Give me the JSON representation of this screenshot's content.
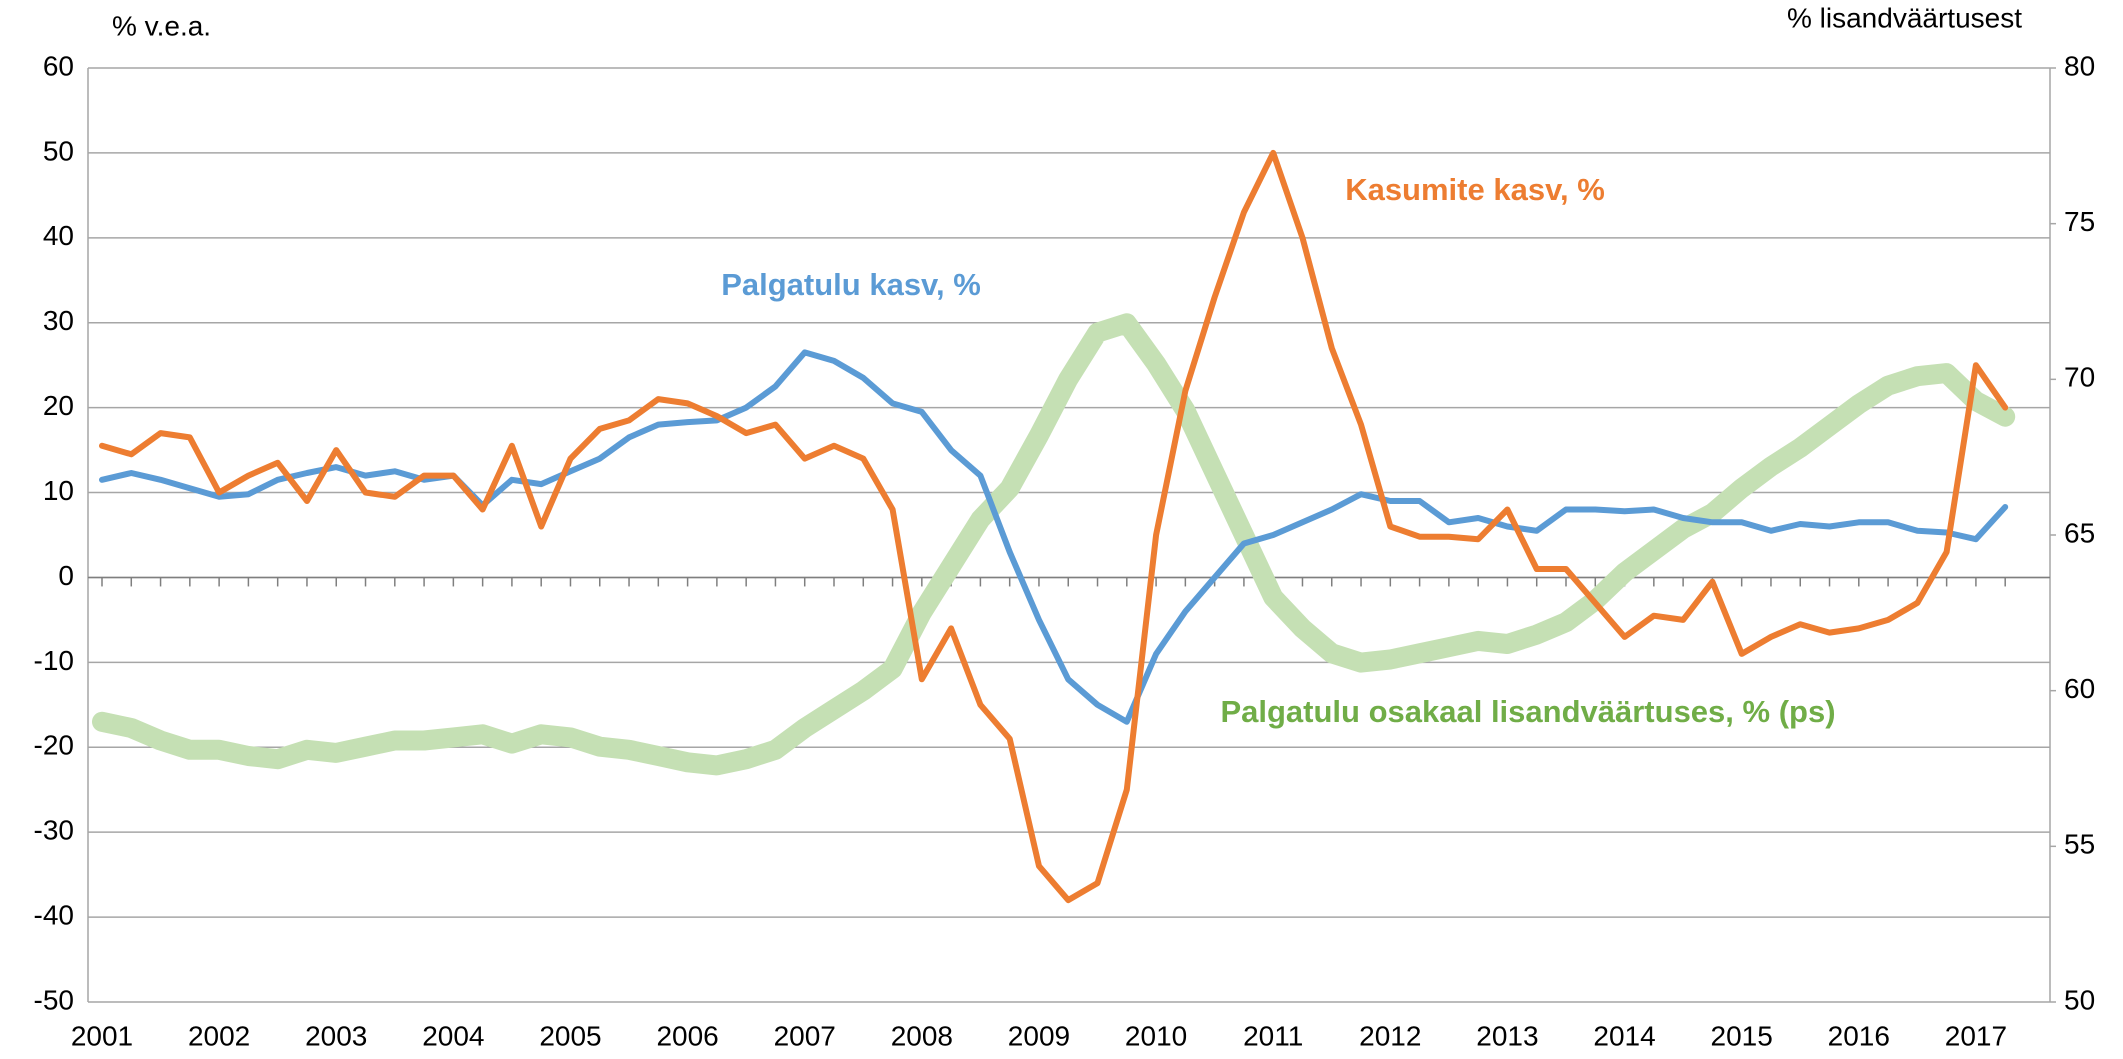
{
  "chart_data": {
    "type": "line",
    "ylabel": "% v.e.a.",
    "y2label": "% lisandväärtusest",
    "categories": [
      "2001",
      null,
      null,
      null,
      "2002",
      null,
      null,
      null,
      "2003",
      null,
      null,
      null,
      "2004",
      null,
      null,
      null,
      "2005",
      null,
      null,
      null,
      "2006",
      null,
      null,
      null,
      "2007",
      null,
      null,
      null,
      "2008",
      null,
      null,
      null,
      "2009",
      null,
      null,
      null,
      "2010",
      null,
      null,
      null,
      "2011",
      null,
      null,
      null,
      "2012",
      null,
      null,
      null,
      "2013",
      null,
      null,
      null,
      "2014",
      null,
      null,
      null,
      "2015",
      null,
      null,
      null,
      "2016",
      null,
      null,
      null,
      "2017",
      null
    ],
    "series": [
      {
        "name": "Palgatulu kasv, %",
        "color": "#5b9bd5",
        "label_color": "#5b9bd5",
        "width": 6,
        "values": [
          11.5,
          12.3,
          11.5,
          10.5,
          9.5,
          9.8,
          11.5,
          12.3,
          13,
          12,
          12.5,
          11.5,
          12,
          8.5,
          11.5,
          11,
          12.5,
          14,
          16.5,
          18,
          18.3,
          18.5,
          20,
          22.5,
          26.5,
          25.5,
          23.5,
          20.5,
          19.5,
          15,
          12,
          3,
          -5,
          -12,
          -15,
          -17,
          -9,
          -4,
          0,
          4,
          5,
          6.5,
          8,
          9.8,
          9,
          9,
          6.5,
          7,
          6,
          5.5,
          8,
          8,
          7.8,
          8,
          7,
          6.5,
          6.5,
          5.5,
          6.3,
          6,
          6.5,
          6.5,
          5.5,
          5.3,
          4.5,
          8.3
        ]
      },
      {
        "name": "Kasumite kasv, %",
        "color": "#ed7d31",
        "label_color": "#ed7d31",
        "width": 6,
        "values": [
          15.5,
          14.5,
          17,
          16.5,
          10,
          12,
          13.5,
          9,
          15,
          10,
          9.5,
          12,
          12,
          8,
          15.5,
          6,
          14,
          17.5,
          18.5,
          21,
          20.5,
          19,
          17,
          18,
          14,
          15.5,
          14,
          8,
          -12,
          -6,
          -15,
          -19,
          -34,
          -38,
          -36,
          -25,
          5,
          22,
          33,
          43,
          50,
          40,
          27,
          18,
          6,
          4.8,
          4.8,
          4.5,
          8,
          1,
          1,
          -3,
          -7,
          -4.5,
          -5,
          -0.5,
          -9,
          -7,
          -5.5,
          -6.5,
          -6,
          -5,
          -3,
          3,
          25,
          20
        ]
      },
      {
        "name": "Palgatulu osakaal lisandväärtuses, % (ps)",
        "color": "#c5e0b4",
        "label_color": "#70ad47",
        "width": 20,
        "axis": "y2",
        "values": [
          59,
          58.8,
          58.4,
          58.1,
          58.1,
          57.9,
          57.8,
          58.1,
          58,
          58.2,
          58.4,
          58.4,
          58.5,
          58.6,
          58.3,
          58.6,
          58.5,
          58.2,
          58.1,
          57.9,
          57.7,
          57.6,
          57.8,
          58.1,
          58.8,
          59.4,
          60,
          60.7,
          62.5,
          64,
          65.5,
          66.5,
          68.2,
          70,
          71.5,
          71.8,
          70.5,
          69,
          67,
          65,
          63,
          62,
          61.2,
          60.9,
          61,
          61.2,
          61.4,
          61.6,
          61.5,
          61.8,
          62.2,
          62.9,
          63.8,
          64.5,
          65.2,
          65.7,
          66.5,
          67.2,
          67.8,
          68.5,
          69.2,
          69.8,
          70.1,
          70.2,
          69.3,
          68.8
        ]
      }
    ],
    "ylim": [
      -50,
      60
    ],
    "yticks": [
      -50,
      -40,
      -30,
      -20,
      -10,
      0,
      10,
      20,
      30,
      40,
      50,
      60
    ],
    "y2lim": [
      50,
      80
    ],
    "y2ticks": [
      50,
      55,
      60,
      65,
      70,
      75,
      80
    ],
    "grid": true
  }
}
